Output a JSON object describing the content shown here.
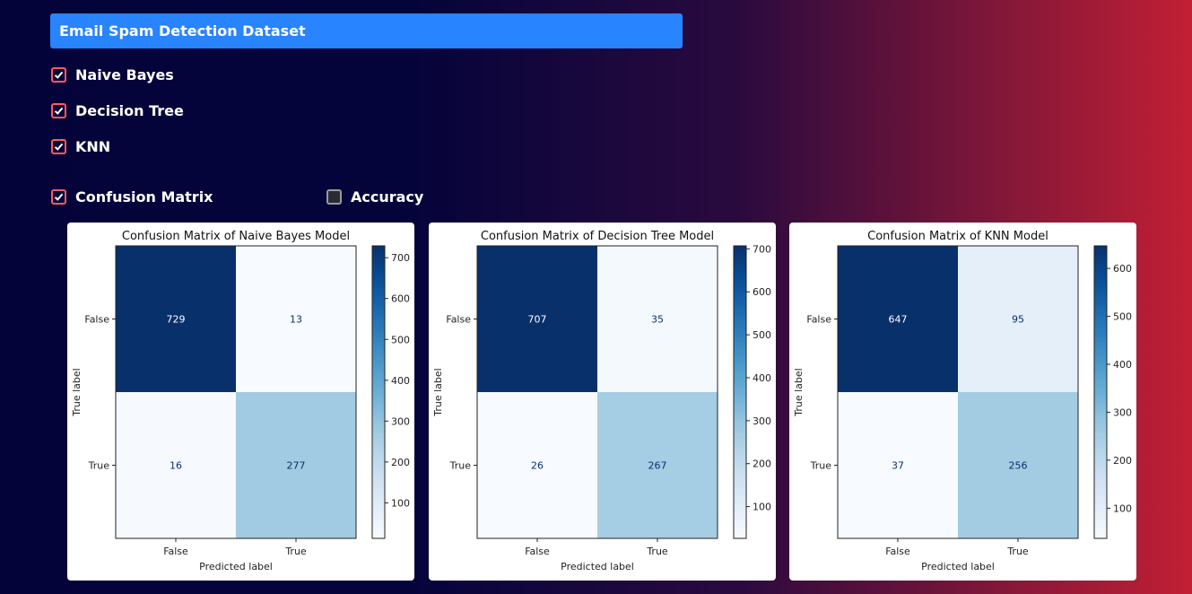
{
  "dataset": {
    "selected": "Email Spam Detection Dataset"
  },
  "models": [
    {
      "label": "Naive Bayes",
      "checked": true
    },
    {
      "label": "Decision Tree",
      "checked": true
    },
    {
      "label": "KNN",
      "checked": true
    }
  ],
  "metrics": {
    "confusion": {
      "label": "Confusion Matrix",
      "checked": true
    },
    "accuracy": {
      "label": "Accuracy",
      "checked": false
    }
  },
  "chart_data": [
    {
      "type": "heatmap",
      "title": "Confusion Matrix of Naive Bayes Model",
      "xlabel": "Predicted label",
      "ylabel": "True label",
      "x_categories": [
        "False",
        "True"
      ],
      "y_categories": [
        "False",
        "True"
      ],
      "matrix": [
        [
          729,
          13
        ],
        [
          16,
          277
        ]
      ],
      "colorbar_ticks": [
        100,
        200,
        300,
        400,
        500,
        600,
        700
      ],
      "colormap": "Blues"
    },
    {
      "type": "heatmap",
      "title": "Confusion Matrix of Decision Tree Model",
      "xlabel": "Predicted label",
      "ylabel": "True label",
      "x_categories": [
        "False",
        "True"
      ],
      "y_categories": [
        "False",
        "True"
      ],
      "matrix": [
        [
          707,
          35
        ],
        [
          26,
          267
        ]
      ],
      "colorbar_ticks": [
        100,
        200,
        300,
        400,
        500,
        600,
        700
      ],
      "colormap": "Blues"
    },
    {
      "type": "heatmap",
      "title": "Confusion Matrix of KNN Model",
      "xlabel": "Predicted label",
      "ylabel": "True label",
      "x_categories": [
        "False",
        "True"
      ],
      "y_categories": [
        "False",
        "True"
      ],
      "matrix": [
        [
          647,
          95
        ],
        [
          37,
          256
        ]
      ],
      "colorbar_ticks": [
        100,
        200,
        300,
        400,
        500,
        600
      ],
      "colormap": "Blues"
    }
  ]
}
